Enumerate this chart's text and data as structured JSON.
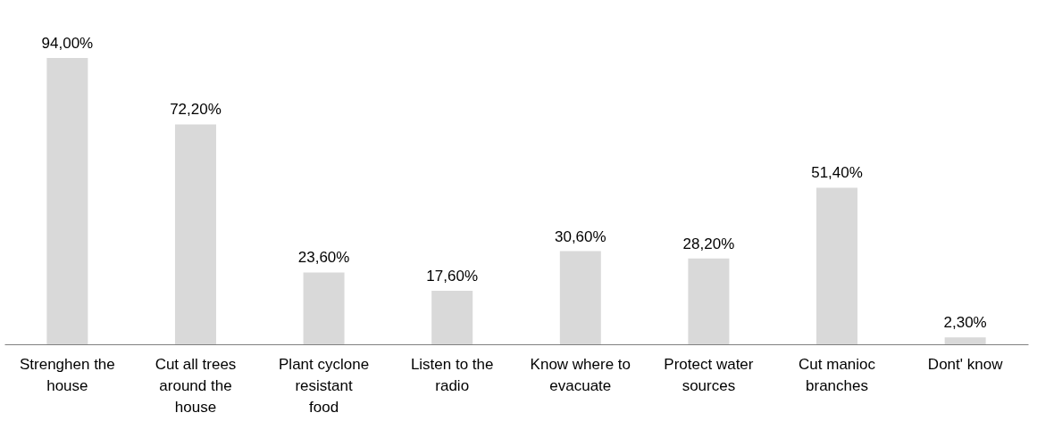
{
  "chart_data": {
    "type": "bar",
    "categories": [
      "Strenghen the house",
      "Cut all trees around the house",
      "Plant cyclone resistant food",
      "Listen to the radio",
      "Know where to evacuate",
      "Protect water sources",
      "Cut manioc branches",
      "Dont' know"
    ],
    "values": [
      94.0,
      72.2,
      23.6,
      17.6,
      30.6,
      28.2,
      51.4,
      2.3
    ],
    "value_labels": [
      "94,00%",
      "72,20%",
      "23,60%",
      "17,60%",
      "30,60%",
      "28,20%",
      "51,40%",
      "2,30%"
    ],
    "color": "#d9d9d9"
  }
}
